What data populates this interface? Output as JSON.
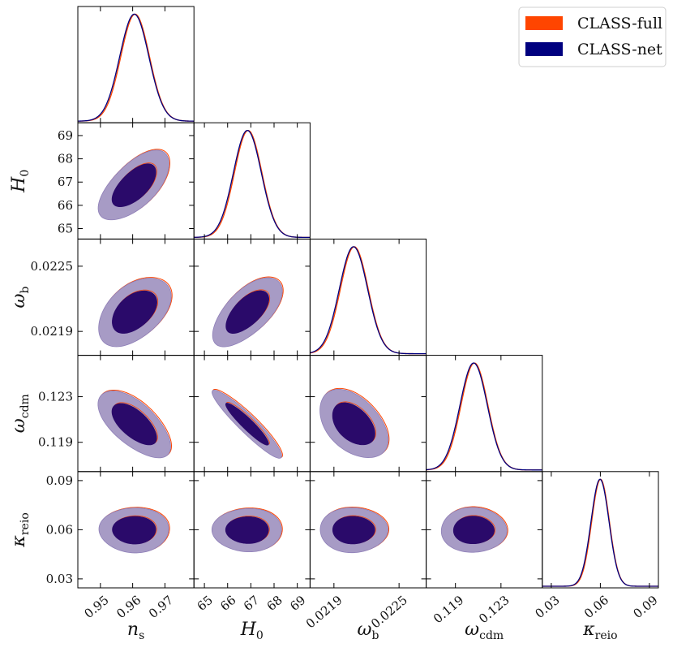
{
  "legend": {
    "items": [
      {
        "label": "CLASS-full",
        "color": "#ff4500"
      },
      {
        "label": "CLASS-net",
        "color": "#00007f"
      }
    ]
  },
  "chart_data": {
    "type": "corner",
    "parameters": [
      {
        "key": "ns",
        "label": "n_s",
        "sym": "n",
        "sub": "s",
        "range": [
          0.943,
          0.979
        ],
        "ticks": [
          0.95,
          0.96,
          0.97
        ],
        "tick_labels": [
          "0.95",
          "0.96",
          "0.97"
        ],
        "mean": 0.9605,
        "sigma": 0.0045
      },
      {
        "key": "H0",
        "label": "H_0",
        "sym": "H",
        "sub": "0",
        "range": [
          64.55,
          69.55
        ],
        "ticks": [
          65,
          66,
          67,
          68,
          69
        ],
        "tick_labels": [
          "65",
          "66",
          "67",
          "68",
          "69"
        ],
        "mean": 66.85,
        "sigma": 0.6
      },
      {
        "key": "wb",
        "label": "ω_b",
        "sym": "ω",
        "sub": "b",
        "range": [
          0.02168,
          0.02275
        ],
        "ticks": [
          0.0219,
          0.0225
        ],
        "tick_labels": [
          "0.0219",
          "0.0225"
        ],
        "mean": 0.02208,
        "sigma": 0.00013
      },
      {
        "key": "wcdm",
        "label": "ω_cdm",
        "sym": "ω",
        "sub": "cdm",
        "range": [
          0.11643,
          0.12663
        ],
        "ticks": [
          0.119,
          0.123
        ],
        "tick_labels": [
          "0.119",
          "0.123"
        ],
        "mean": 0.1206,
        "sigma": 0.0012
      },
      {
        "key": "kreio",
        "label": "κ_reio",
        "sym": "κ",
        "sub": "reio",
        "range": [
          0.0245,
          0.0955
        ],
        "ticks": [
          0.03,
          0.06,
          0.09
        ],
        "tick_labels": [
          "0.03",
          "0.06",
          "0.09"
        ],
        "mean": 0.0598,
        "sigma": 0.0055
      }
    ],
    "correlations": [
      {
        "i": 1,
        "j": 0,
        "rho": 0.62
      },
      {
        "i": 2,
        "j": 0,
        "rho": 0.45
      },
      {
        "i": 2,
        "j": 1,
        "rho": 0.62
      },
      {
        "i": 3,
        "j": 0,
        "rho": -0.62
      },
      {
        "i": 3,
        "j": 1,
        "rho": -0.93
      },
      {
        "i": 3,
        "j": 2,
        "rho": -0.42
      },
      {
        "i": 4,
        "j": 0,
        "rho": 0.0
      },
      {
        "i": 4,
        "j": 1,
        "rho": 0.0
      },
      {
        "i": 4,
        "j": 2,
        "rho": 0.0
      },
      {
        "i": 4,
        "j": 3,
        "rho": 0.0
      }
    ],
    "series": [
      {
        "name": "CLASS-full",
        "color": "#ff4500",
        "mean_shift_sigma": 0.06
      },
      {
        "name": "CLASS-net",
        "color": "#00007f",
        "mean_shift_sigma": 0.0
      }
    ],
    "contour_levels": [
      "68%",
      "95%"
    ],
    "contour_fill_colors": {
      "inner": "#2a0a6a",
      "outer": "#a79bc5"
    },
    "legend_position": "top-right"
  }
}
